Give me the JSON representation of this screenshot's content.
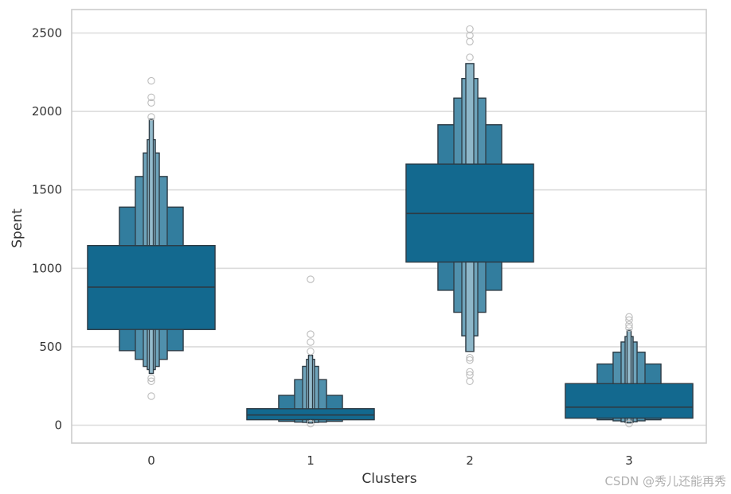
{
  "chart_data": {
    "type": "boxen",
    "title": "",
    "xlabel": "Clusters",
    "ylabel": "Spent",
    "ylim": [
      -120,
      2640
    ],
    "yticks": [
      0,
      500,
      1000,
      1500,
      2000,
      2500
    ],
    "categories": [
      "0",
      "1",
      "2",
      "3"
    ],
    "grid": true,
    "colors": {
      "base": "#13698f",
      "edge": "#2d3b44",
      "grid": "#dcdcdc",
      "frame": "#cccccc",
      "outlier": "#bdbdbd"
    },
    "boxes": [
      {
        "category": "0",
        "median": 880,
        "levels": [
          [
            610,
            1145
          ],
          [
            475,
            1390
          ],
          [
            420,
            1585
          ],
          [
            375,
            1735
          ],
          [
            355,
            1820
          ],
          [
            330,
            1950
          ]
        ],
        "outliers": [
          2195,
          2090,
          2055,
          1965,
          300,
          280,
          185
        ]
      },
      {
        "category": "1",
        "median": 65,
        "levels": [
          [
            35,
            105
          ],
          [
            25,
            190
          ],
          [
            20,
            290
          ],
          [
            18,
            375
          ],
          [
            16,
            420
          ],
          [
            14,
            445
          ]
        ],
        "outliers": [
          930,
          580,
          530,
          470,
          10
        ]
      },
      {
        "category": "2",
        "median": 1350,
        "levels": [
          [
            1040,
            1665
          ],
          [
            860,
            1915
          ],
          [
            720,
            2085
          ],
          [
            570,
            2210
          ],
          [
            470,
            2305
          ]
        ],
        "outliers": [
          2525,
          2485,
          2445,
          2345,
          430,
          415,
          340,
          320,
          280
        ]
      },
      {
        "category": "3",
        "median": 115,
        "levels": [
          [
            45,
            265
          ],
          [
            35,
            390
          ],
          [
            28,
            465
          ],
          [
            22,
            530
          ],
          [
            18,
            565
          ],
          [
            15,
            605
          ]
        ],
        "outliers": [
          690,
          670,
          640,
          620,
          10
        ]
      }
    ]
  },
  "watermark": "CSDN @秀儿还能再秀"
}
